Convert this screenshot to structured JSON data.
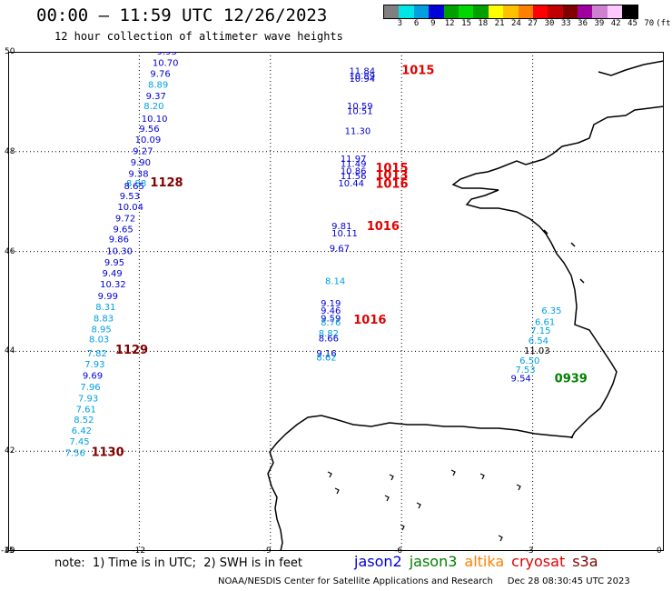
{
  "header": {
    "title": "00:00 – 11:59 UTC 12/26/2023",
    "subtitle": "12 hour collection of altimeter wave heights"
  },
  "colorbar": {
    "unit": "(ft)",
    "colors": [
      "#808080",
      "#00e5e5",
      "#00a0e0",
      "#0000d8",
      "#00a000",
      "#00d800",
      "#00a000",
      "#ffff00",
      "#ffc000",
      "#ff8000",
      "#ff0000",
      "#c00000",
      "#800000",
      "#a000a0",
      "#d080d0",
      "#ffc8ff",
      "#000000"
    ],
    "labels": [
      "3",
      "6",
      "9",
      "12",
      "15",
      "18",
      "21",
      "24",
      "27",
      "30",
      "33",
      "36",
      "39",
      "42",
      "45",
      "70"
    ]
  },
  "map": {
    "lon_range": [
      -15,
      0
    ],
    "lat_range": [
      40,
      50
    ],
    "y_ticks": [
      "50",
      "48",
      "46",
      "44",
      "42",
      "40"
    ],
    "x_ticks": [
      "-15",
      "-12",
      "-9",
      "-6",
      "-3",
      "0"
    ],
    "grid": "dotted"
  },
  "tracks": [
    {
      "color": "#0000d8",
      "lon": -11.6,
      "lat": 49.95,
      "value": "9.93"
    },
    {
      "color": "#0000d8",
      "lon": -11.7,
      "lat": 49.72,
      "value": "10.70"
    },
    {
      "color": "#0000d8",
      "lon": -11.75,
      "lat": 49.5,
      "value": "9.76"
    },
    {
      "color": "#00a0e0",
      "lon": -11.8,
      "lat": 49.28,
      "value": "8.89"
    },
    {
      "color": "#0000d8",
      "lon": -11.85,
      "lat": 49.05,
      "value": "9.37"
    },
    {
      "color": "#00a0e0",
      "lon": -11.9,
      "lat": 48.85,
      "value": "8.20"
    },
    {
      "color": "#0000d8",
      "lon": -11.95,
      "lat": 48.6,
      "value": "10.10"
    },
    {
      "color": "#0000d8",
      "lon": -12.0,
      "lat": 48.4,
      "value": "9.56"
    },
    {
      "color": "#0000d8",
      "lon": -12.1,
      "lat": 48.18,
      "value": "10.09"
    },
    {
      "color": "#0000d8",
      "lon": -12.15,
      "lat": 47.95,
      "value": "9.27"
    },
    {
      "color": "#0000d8",
      "lon": -12.2,
      "lat": 47.72,
      "value": "9.90"
    },
    {
      "color": "#0000d8",
      "lon": -12.25,
      "lat": 47.5,
      "value": "9.38"
    },
    {
      "color": "#00a0e0",
      "lon": -12.3,
      "lat": 47.3,
      "value": "8.88"
    },
    {
      "color": "#0000d8",
      "lon": -12.35,
      "lat": 47.25,
      "value": "8.65"
    },
    {
      "color": "#0000d8",
      "lon": -12.45,
      "lat": 47.05,
      "value": "9.53"
    },
    {
      "color": "#0000d8",
      "lon": -12.5,
      "lat": 46.83,
      "value": "10.04"
    },
    {
      "color": "#0000d8",
      "lon": -12.55,
      "lat": 46.6,
      "value": "9.72"
    },
    {
      "color": "#0000d8",
      "lon": -12.6,
      "lat": 46.38,
      "value": "9.65"
    },
    {
      "color": "#0000d8",
      "lon": -12.7,
      "lat": 46.18,
      "value": "9.86"
    },
    {
      "color": "#0000d8",
      "lon": -12.75,
      "lat": 45.95,
      "value": "10.30"
    },
    {
      "color": "#0000d8",
      "lon": -12.8,
      "lat": 45.72,
      "value": "9.95"
    },
    {
      "color": "#0000d8",
      "lon": -12.85,
      "lat": 45.5,
      "value": "9.49"
    },
    {
      "color": "#0000d8",
      "lon": -12.9,
      "lat": 45.28,
      "value": "10.32"
    },
    {
      "color": "#0000d8",
      "lon": -12.95,
      "lat": 45.05,
      "value": "9.99"
    },
    {
      "color": "#00a0e0",
      "lon": -13.0,
      "lat": 44.83,
      "value": "8.31"
    },
    {
      "color": "#00a0e0",
      "lon": -13.05,
      "lat": 44.6,
      "value": "8.83"
    },
    {
      "color": "#00a0e0",
      "lon": -13.1,
      "lat": 44.38,
      "value": "8.95"
    },
    {
      "color": "#00a0e0",
      "lon": -13.15,
      "lat": 44.18,
      "value": "8.03"
    },
    {
      "color": "#00a0e0",
      "lon": -13.2,
      "lat": 43.9,
      "value": "7.82"
    },
    {
      "color": "#00a0e0",
      "lon": -13.25,
      "lat": 43.68,
      "value": "7.93"
    },
    {
      "color": "#0000d8",
      "lon": -13.3,
      "lat": 43.45,
      "value": "9.69"
    },
    {
      "color": "#00a0e0",
      "lon": -13.35,
      "lat": 43.22,
      "value": "7.96"
    },
    {
      "color": "#00a0e0",
      "lon": -13.4,
      "lat": 43.0,
      "value": "7.93"
    },
    {
      "color": "#00a0e0",
      "lon": -13.45,
      "lat": 42.78,
      "value": "7.61"
    },
    {
      "color": "#00a0e0",
      "lon": -13.5,
      "lat": 42.57,
      "value": "8.52"
    },
    {
      "color": "#00a0e0",
      "lon": -13.55,
      "lat": 42.35,
      "value": "6.42"
    },
    {
      "color": "#00a0e0",
      "lon": -13.6,
      "lat": 42.13,
      "value": "7.45"
    },
    {
      "color": "#00a0e0",
      "lon": -13.7,
      "lat": 41.9,
      "value": "7.56"
    },
    {
      "color": "#0000d8",
      "lon": -7.2,
      "lat": 49.55,
      "value": "11.84"
    },
    {
      "color": "#0000d8",
      "lon": -7.2,
      "lat": 49.45,
      "value": "10.89"
    },
    {
      "color": "#0000d8",
      "lon": -7.2,
      "lat": 49.4,
      "value": "10.94"
    },
    {
      "color": "#0000d8",
      "lon": -7.25,
      "lat": 48.85,
      "value": "10.59"
    },
    {
      "color": "#0000d8",
      "lon": -7.25,
      "lat": 48.75,
      "value": "10.51"
    },
    {
      "color": "#0000d8",
      "lon": -7.3,
      "lat": 48.35,
      "value": "11.30"
    },
    {
      "color": "#0000d8",
      "lon": -7.4,
      "lat": 47.8,
      "value": "11.97"
    },
    {
      "color": "#0000d8",
      "lon": -7.4,
      "lat": 47.7,
      "value": "11.49"
    },
    {
      "color": "#0000d8",
      "lon": -7.4,
      "lat": 47.55,
      "value": "10.86"
    },
    {
      "color": "#0000d8",
      "lon": -7.4,
      "lat": 47.45,
      "value": "11.56"
    },
    {
      "color": "#0000d8",
      "lon": -7.45,
      "lat": 47.3,
      "value": "10.44"
    },
    {
      "color": "#0000d8",
      "lon": -7.6,
      "lat": 46.45,
      "value": "9.81"
    },
    {
      "color": "#0000d8",
      "lon": -7.6,
      "lat": 46.3,
      "value": "10.11"
    },
    {
      "color": "#0000d8",
      "lon": -7.65,
      "lat": 46.0,
      "value": "9.67"
    },
    {
      "color": "#00a0e0",
      "lon": -7.75,
      "lat": 45.35,
      "value": "8.14"
    },
    {
      "color": "#0000d8",
      "lon": -7.85,
      "lat": 44.9,
      "value": "9.19"
    },
    {
      "color": "#0000d8",
      "lon": -7.85,
      "lat": 44.75,
      "value": "9.46"
    },
    {
      "color": "#0000d8",
      "lon": -7.85,
      "lat": 44.6,
      "value": "9.59"
    },
    {
      "color": "#00a0e0",
      "lon": -7.85,
      "lat": 44.52,
      "value": "8.76"
    },
    {
      "color": "#00a0e0",
      "lon": -7.9,
      "lat": 44.3,
      "value": "8.82"
    },
    {
      "color": "#0000d8",
      "lon": -7.9,
      "lat": 44.2,
      "value": "8.66"
    },
    {
      "color": "#0000d8",
      "lon": -7.95,
      "lat": 43.9,
      "value": "9.16"
    },
    {
      "color": "#00a0e0",
      "lon": -7.95,
      "lat": 43.82,
      "value": "8.62"
    },
    {
      "color": "#00a0e0",
      "lon": -2.8,
      "lat": 44.75,
      "value": "6.35"
    },
    {
      "color": "#00a0e0",
      "lon": -2.95,
      "lat": 44.53,
      "value": "6.61"
    },
    {
      "color": "#00a0e0",
      "lon": -3.05,
      "lat": 44.35,
      "value": "7.15"
    },
    {
      "color": "#00a0e0",
      "lon": -3.1,
      "lat": 44.15,
      "value": "6.54"
    },
    {
      "color": "#000000",
      "lon": -3.2,
      "lat": 43.95,
      "value": "11.03"
    },
    {
      "color": "#00a0e0",
      "lon": -3.3,
      "lat": 43.75,
      "value": "6.50"
    },
    {
      "color": "#00a0e0",
      "lon": -3.4,
      "lat": 43.57,
      "value": "7.53"
    },
    {
      "color": "#0000d8",
      "lon": -3.5,
      "lat": 43.4,
      "value": "9.54"
    }
  ],
  "time_labels": [
    {
      "text": "1015",
      "color": "#e00000",
      "lon": -6.0,
      "lat": 49.55
    },
    {
      "text": "1128",
      "color": "#800000",
      "lon": -11.75,
      "lat": 47.3
    },
    {
      "text": "1015",
      "color": "#e00000",
      "lon": -6.6,
      "lat": 47.6
    },
    {
      "text": "1013",
      "color": "#e00000",
      "lon": -6.6,
      "lat": 47.45
    },
    {
      "text": "1016",
      "color": "#e00000",
      "lon": -6.6,
      "lat": 47.28
    },
    {
      "text": "1016",
      "color": "#e00000",
      "lon": -6.8,
      "lat": 46.43
    },
    {
      "text": "1016",
      "color": "#e00000",
      "lon": -7.1,
      "lat": 44.55
    },
    {
      "text": "1129",
      "color": "#800000",
      "lon": -12.55,
      "lat": 43.95
    },
    {
      "text": "0939",
      "color": "#008000",
      "lon": -2.5,
      "lat": 43.38
    },
    {
      "text": "1130",
      "color": "#800000",
      "lon": -13.1,
      "lat": 41.9
    }
  ],
  "footer": {
    "note": "note:  1) Time is in UTC;  2) SWH is in feet",
    "legend": [
      {
        "name": "jason2",
        "color": "#0000d8"
      },
      {
        "name": "jason3",
        "color": "#008000"
      },
      {
        "name": "altika",
        "color": "#ff8000"
      },
      {
        "name": "cryosat",
        "color": "#e00000"
      },
      {
        "name": "s3a",
        "color": "#800000"
      }
    ],
    "credit": "NOAA/NESDIS Center for Satellite Applications and Research     Dec 28 08:30:45 UTC 2023"
  }
}
